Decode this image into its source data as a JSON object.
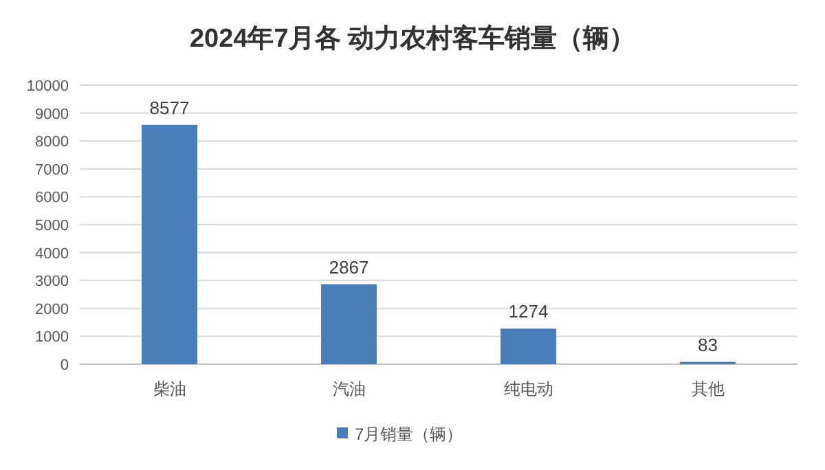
{
  "chart_data": {
    "type": "bar",
    "title": "2024年7月各 动力农村客车销量（辆）",
    "categories": [
      "柴油",
      "汽油",
      "纯电动",
      "其他"
    ],
    "series": [
      {
        "name": "7月销量（辆）",
        "color": "#4a7ebb",
        "values": [
          8577,
          2867,
          1274,
          83
        ]
      }
    ],
    "ylim": [
      0,
      10000
    ],
    "yticks": [
      0,
      1000,
      2000,
      3000,
      4000,
      5000,
      6000,
      7000,
      8000,
      9000,
      10000
    ],
    "grid": "y",
    "legend": "bottom",
    "data_labels": true
  }
}
